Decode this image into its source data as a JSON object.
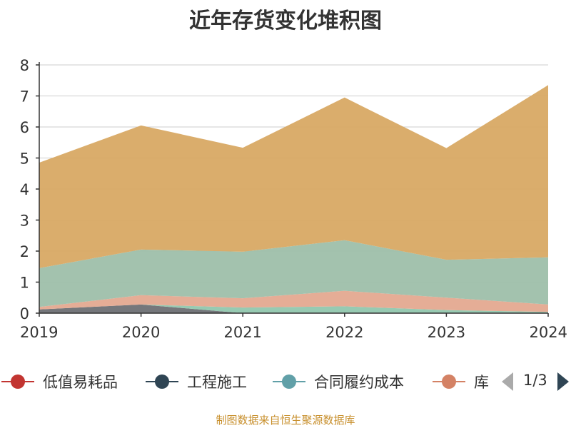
{
  "title": "近年存货变化堆积图",
  "source": "制图数据来自恒生聚源数据库",
  "legend": {
    "items": [
      {
        "name": "低值易耗品",
        "color": "#c23531"
      },
      {
        "name": "工程施工",
        "color": "#2f4554"
      },
      {
        "name": "合同履约成本",
        "color": "#61a0a8"
      },
      {
        "name": "库",
        "color": "#d48265"
      }
    ],
    "page": "1/3"
  },
  "chart_data": {
    "type": "area",
    "stacked": true,
    "x": [
      "2019",
      "2020",
      "2021",
      "2022",
      "2023",
      "2024"
    ],
    "ylim": [
      0,
      8
    ],
    "yticks": [
      "0",
      "1",
      "2",
      "3",
      "4",
      "5",
      "6",
      "7",
      "8"
    ],
    "grid": true,
    "series": [
      {
        "color": "#6e7074",
        "values": [
          0.12,
          0.28,
          0.0,
          0.0,
          0.0,
          0.0
        ]
      },
      {
        "color": "#91c7ae",
        "values": [
          0.0,
          0.0,
          0.18,
          0.22,
          0.1,
          0.04
        ]
      },
      {
        "color": "#e4a990",
        "values": [
          0.08,
          0.3,
          0.3,
          0.5,
          0.4,
          0.24
        ]
      },
      {
        "color": "#9ebfaa",
        "values": [
          1.25,
          1.47,
          1.5,
          1.63,
          1.22,
          1.52
        ]
      },
      {
        "color": "#d8a964",
        "values": [
          3.4,
          4.0,
          3.35,
          4.6,
          3.6,
          5.55
        ]
      }
    ]
  }
}
